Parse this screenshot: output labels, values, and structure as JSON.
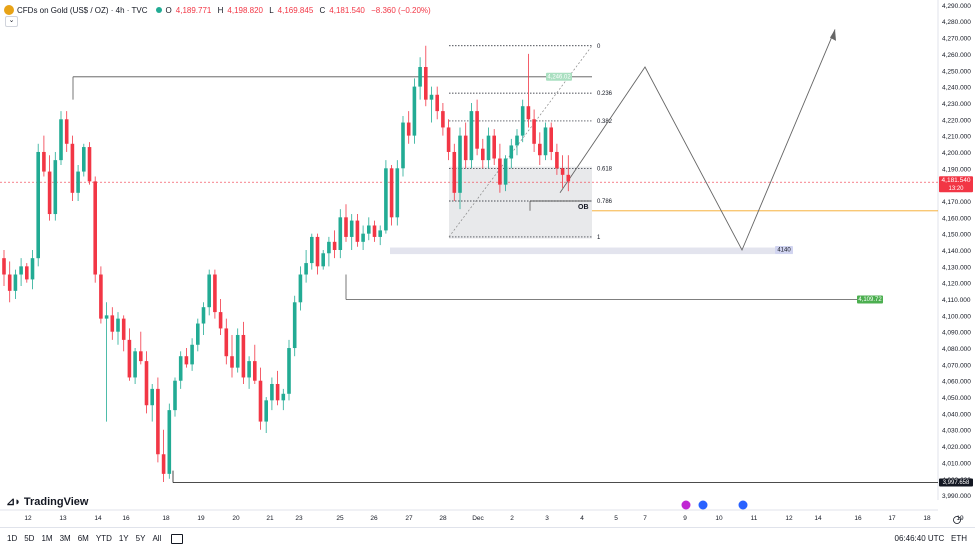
{
  "header": {
    "symbol": "CFDs on Gold (US$ / OZ) · 4h · TVC",
    "open_label": "O",
    "open": "4,189.771",
    "high_label": "H",
    "high": "4,198.820",
    "low_label": "L",
    "low": "4,169.845",
    "close_label": "C",
    "close": "4,181.540",
    "change": "−8.360 (−0.20%)"
  },
  "brand": {
    "name": "TradingView"
  },
  "bottom": {
    "ranges": [
      "1D",
      "5D",
      "1M",
      "3M",
      "6M",
      "YTD",
      "1Y",
      "5Y",
      "All"
    ],
    "clock": "06:46:40 UTC",
    "session": "ETH"
  },
  "colors": {
    "up": "#22ab94",
    "down": "#f23645",
    "accent": "#2962ff",
    "orange": "#f5a623"
  },
  "chart_data": {
    "type": "candlestick",
    "timeframe": "4h",
    "y_axis": {
      "ticks": [
        "4,290.000",
        "4,280.000",
        "4,270.000",
        "4,260.000",
        "4,250.000",
        "4,240.000",
        "4,230.000",
        "4,220.000",
        "4,210.000",
        "4,200.000",
        "4,190.000",
        "4,180.000",
        "4,170.000",
        "4,160.000",
        "4,150.000",
        "4,140.000",
        "4,130.000",
        "4,120.000",
        "4,110.000",
        "4,100.000",
        "4,090.000",
        "4,080.000",
        "4,070.000",
        "4,060.000",
        "4,050.000",
        "4,040.000",
        "4,030.000",
        "4,020.000",
        "4,010.000",
        "4,000.000",
        "3,990.000"
      ],
      "range": [
        3987,
        4293
      ]
    },
    "x_axis": {
      "ticks": [
        "12",
        "13",
        "14",
        "16",
        "18",
        "19",
        "20",
        "21",
        "23",
        "25",
        "26",
        "27",
        "28",
        "Dec",
        "2",
        "3",
        "4",
        "5",
        "7",
        "9",
        "10",
        "11",
        "12",
        "14",
        "16",
        "17",
        "18",
        "19"
      ]
    },
    "price_labels": {
      "last": "4,181.540",
      "countdown": "13:20",
      "low": "3,997.658",
      "swing": "4,109.72",
      "ob_high": "4,246.02",
      "target": "4140"
    },
    "fib_levels": [
      {
        "ratio": "0",
        "price": 4265
      },
      {
        "ratio": "0.236",
        "price": 4236
      },
      {
        "ratio": "0.382",
        "price": 4219
      },
      {
        "ratio": "0.618",
        "price": 4190
      },
      {
        "ratio": "0.786",
        "price": 4170
      },
      {
        "ratio": "1",
        "price": 4148
      }
    ],
    "annotations": {
      "ob": "OB"
    },
    "candles": [
      [
        4135,
        4140,
        4118,
        4125
      ],
      [
        4125,
        4133,
        4108,
        4115
      ],
      [
        4115,
        4128,
        4110,
        4125
      ],
      [
        4125,
        4135,
        4118,
        4130
      ],
      [
        4130,
        4132,
        4120,
        4122
      ],
      [
        4122,
        4140,
        4116,
        4135
      ],
      [
        4135,
        4205,
        4130,
        4200
      ],
      [
        4200,
        4210,
        4185,
        4188
      ],
      [
        4188,
        4198,
        4158,
        4162
      ],
      [
        4162,
        4200,
        4158,
        4195
      ],
      [
        4195,
        4225,
        4192,
        4220
      ],
      [
        4220,
        4225,
        4200,
        4205
      ],
      [
        4205,
        4210,
        4170,
        4175
      ],
      [
        4175,
        4192,
        4170,
        4188
      ],
      [
        4188,
        4205,
        4185,
        4203
      ],
      [
        4203,
        4206,
        4180,
        4182
      ],
      [
        4182,
        4185,
        4120,
        4125
      ],
      [
        4125,
        4130,
        4095,
        4098
      ],
      [
        4098,
        4108,
        4035,
        4100
      ],
      [
        4100,
        4105,
        4085,
        4090
      ],
      [
        4090,
        4102,
        4082,
        4098
      ],
      [
        4098,
        4100,
        4078,
        4085
      ],
      [
        4085,
        4092,
        4060,
        4062
      ],
      [
        4062,
        4080,
        4058,
        4078
      ],
      [
        4078,
        4090,
        4070,
        4072
      ],
      [
        4072,
        4078,
        4040,
        4045
      ],
      [
        4045,
        4058,
        4035,
        4055
      ],
      [
        4055,
        4062,
        4010,
        4015
      ],
      [
        4015,
        4030,
        3998,
        4003
      ],
      [
        4003,
        4046,
        4000,
        4042
      ],
      [
        4042,
        4062,
        4038,
        4060
      ],
      [
        4060,
        4078,
        4055,
        4075
      ],
      [
        4075,
        4080,
        4068,
        4070
      ],
      [
        4070,
        4086,
        4066,
        4082
      ],
      [
        4082,
        4098,
        4078,
        4095
      ],
      [
        4095,
        4108,
        4088,
        4105
      ],
      [
        4105,
        4128,
        4100,
        4125
      ],
      [
        4125,
        4128,
        4098,
        4102
      ],
      [
        4102,
        4110,
        4088,
        4092
      ],
      [
        4092,
        4098,
        4070,
        4075
      ],
      [
        4075,
        4088,
        4062,
        4068
      ],
      [
        4068,
        4092,
        4065,
        4088
      ],
      [
        4088,
        4096,
        4058,
        4062
      ],
      [
        4062,
        4075,
        4055,
        4072
      ],
      [
        4072,
        4082,
        4058,
        4060
      ],
      [
        4060,
        4068,
        4030,
        4035
      ],
      [
        4035,
        4050,
        4028,
        4048
      ],
      [
        4048,
        4062,
        4042,
        4058
      ],
      [
        4058,
        4066,
        4045,
        4048
      ],
      [
        4048,
        4055,
        4042,
        4052
      ],
      [
        4052,
        4085,
        4048,
        4080
      ],
      [
        4080,
        4112,
        4075,
        4108
      ],
      [
        4108,
        4130,
        4103,
        4125
      ],
      [
        4125,
        4140,
        4120,
        4132
      ],
      [
        4132,
        4150,
        4128,
        4148
      ],
      [
        4148,
        4150,
        4125,
        4130
      ],
      [
        4130,
        4140,
        4128,
        4138
      ],
      [
        4138,
        4148,
        4130,
        4145
      ],
      [
        4145,
        4152,
        4135,
        4140
      ],
      [
        4140,
        4165,
        4135,
        4160
      ],
      [
        4160,
        4168,
        4145,
        4148
      ],
      [
        4148,
        4162,
        4140,
        4158
      ],
      [
        4158,
        4162,
        4142,
        4145
      ],
      [
        4145,
        4155,
        4140,
        4150
      ],
      [
        4150,
        4160,
        4146,
        4155
      ],
      [
        4155,
        4158,
        4145,
        4148
      ],
      [
        4148,
        4155,
        4143,
        4152
      ],
      [
        4152,
        4195,
        4150,
        4190
      ],
      [
        4190,
        4192,
        4155,
        4160
      ],
      [
        4160,
        4195,
        4155,
        4190
      ],
      [
        4190,
        4222,
        4185,
        4218
      ],
      [
        4218,
        4225,
        4205,
        4210
      ],
      [
        4210,
        4245,
        4205,
        4240
      ],
      [
        4240,
        4258,
        4232,
        4252
      ],
      [
        4252,
        4265,
        4228,
        4232
      ],
      [
        4232,
        4240,
        4218,
        4235
      ],
      [
        4235,
        4240,
        4220,
        4225
      ],
      [
        4225,
        4230,
        4210,
        4215
      ],
      [
        4215,
        4220,
        4195,
        4200
      ],
      [
        4200,
        4205,
        4170,
        4175
      ],
      [
        4175,
        4215,
        4165,
        4210
      ],
      [
        4210,
        4218,
        4190,
        4195
      ],
      [
        4195,
        4230,
        4190,
        4225
      ],
      [
        4225,
        4232,
        4198,
        4202
      ],
      [
        4202,
        4208,
        4190,
        4195
      ],
      [
        4195,
        4215,
        4190,
        4210
      ],
      [
        4210,
        4214,
        4192,
        4196
      ],
      [
        4196,
        4205,
        4175,
        4180
      ],
      [
        4180,
        4198,
        4176,
        4196
      ],
      [
        4196,
        4208,
        4190,
        4204
      ],
      [
        4204,
        4214,
        4198,
        4210
      ],
      [
        4210,
        4232,
        4206,
        4228
      ],
      [
        4228,
        4260,
        4215,
        4220
      ],
      [
        4220,
        4226,
        4200,
        4205
      ],
      [
        4205,
        4212,
        4192,
        4198
      ],
      [
        4198,
        4218,
        4195,
        4215
      ],
      [
        4215,
        4218,
        4195,
        4200
      ],
      [
        4200,
        4205,
        4186,
        4190
      ],
      [
        4190,
        4198,
        4178,
        4186
      ],
      [
        4186,
        4198,
        4176,
        4182
      ]
    ]
  }
}
